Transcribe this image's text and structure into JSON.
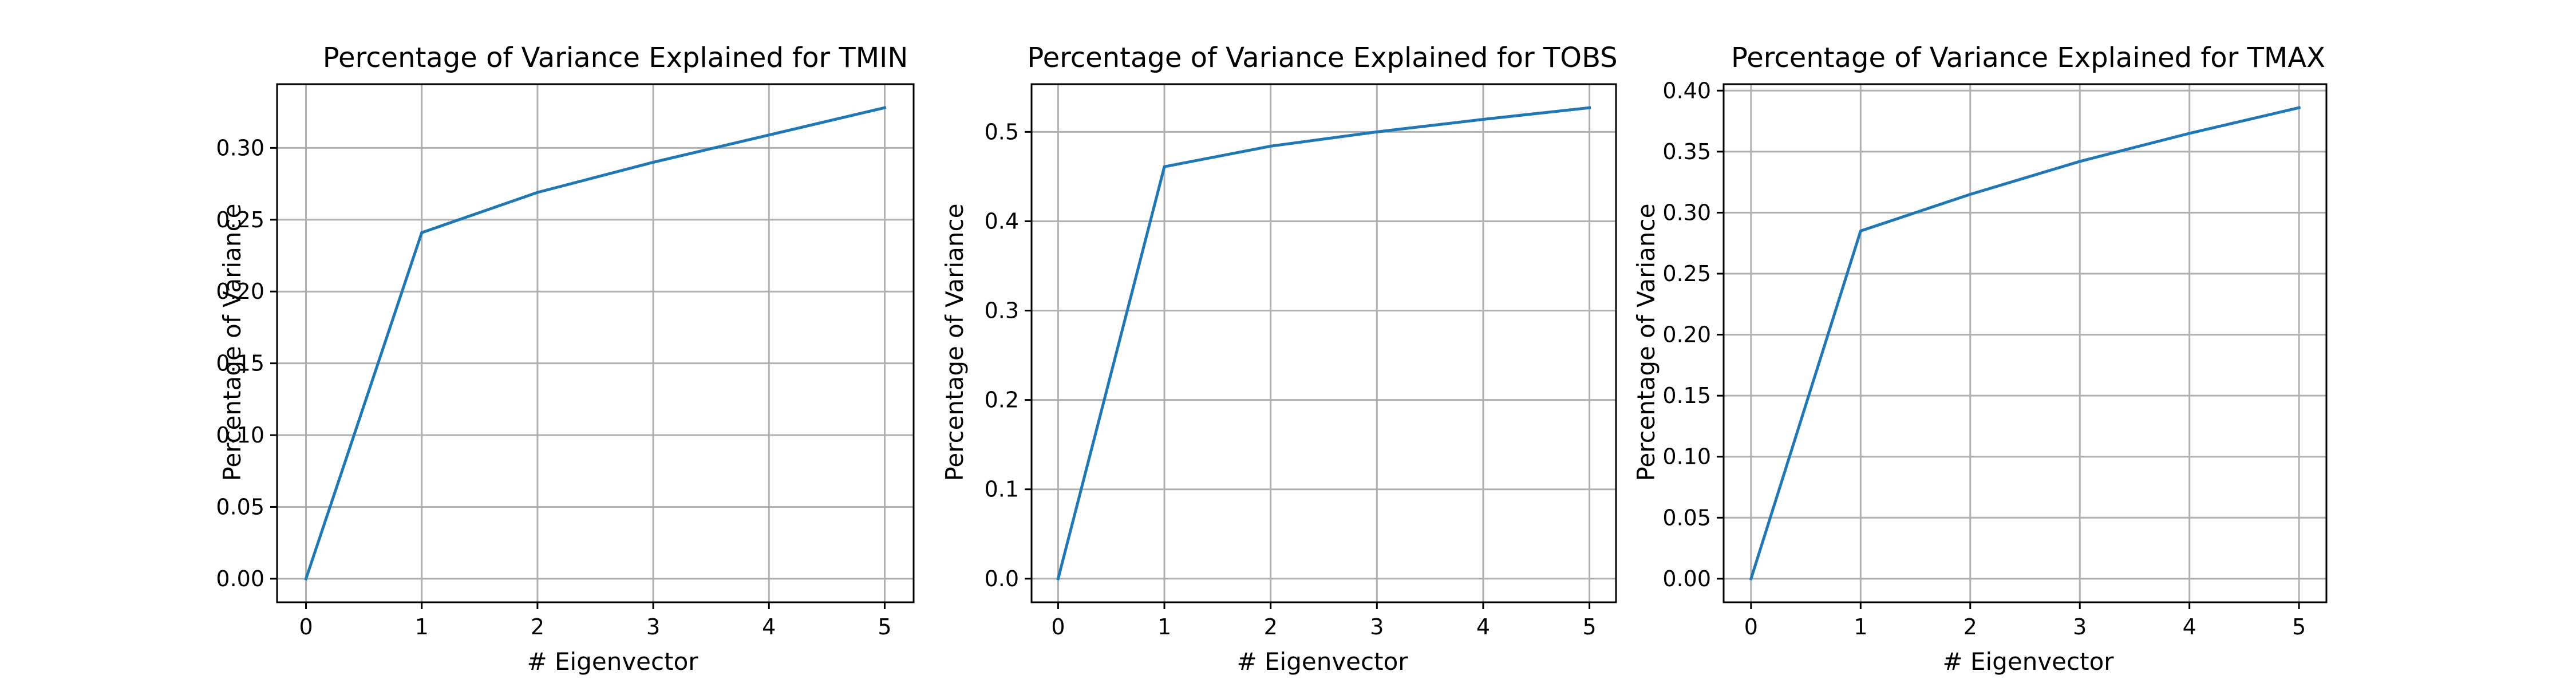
{
  "chart_data": [
    {
      "type": "line",
      "title": "Percentage of Variance Explained for TMIN",
      "xlabel": "# Eigenvector",
      "ylabel": "Percentage of Variance",
      "x": [
        0,
        1,
        2,
        3,
        4,
        5
      ],
      "series": [
        {
          "values": [
            0.0,
            0.241,
            0.269,
            0.29,
            0.309,
            0.328
          ]
        }
      ],
      "xlim": [
        -0.25,
        5.25
      ],
      "ylim": [
        -0.0164,
        0.3444
      ],
      "xticks": [
        0,
        1,
        2,
        3,
        4,
        5
      ],
      "xtick_labels": [
        "0",
        "1",
        "2",
        "3",
        "4",
        "5"
      ],
      "yticks": [
        0.0,
        0.05,
        0.1,
        0.15,
        0.2,
        0.25,
        0.3
      ],
      "ytick_labels": [
        "0.00",
        "0.05",
        "0.10",
        "0.15",
        "0.20",
        "0.25",
        "0.30"
      ],
      "grid": true,
      "color": "#1f77b4"
    },
    {
      "type": "line",
      "title": "Percentage of Variance Explained for TOBS",
      "xlabel": "# Eigenvector",
      "ylabel": "Percentage of Variance",
      "x": [
        0,
        1,
        2,
        3,
        4,
        5
      ],
      "series": [
        {
          "values": [
            0.0,
            0.461,
            0.484,
            0.5,
            0.514,
            0.527
          ]
        }
      ],
      "xlim": [
        -0.25,
        5.25
      ],
      "ylim": [
        -0.0264,
        0.5534
      ],
      "xticks": [
        0,
        1,
        2,
        3,
        4,
        5
      ],
      "xtick_labels": [
        "0",
        "1",
        "2",
        "3",
        "4",
        "5"
      ],
      "yticks": [
        0.0,
        0.1,
        0.2,
        0.3,
        0.4,
        0.5
      ],
      "ytick_labels": [
        "0.0",
        "0.1",
        "0.2",
        "0.3",
        "0.4",
        "0.5"
      ],
      "grid": true,
      "color": "#1f77b4"
    },
    {
      "type": "line",
      "title": "Percentage of Variance Explained for TMAX",
      "xlabel": "# Eigenvector",
      "ylabel": "Percentage of Variance",
      "x": [
        0,
        1,
        2,
        3,
        4,
        5
      ],
      "series": [
        {
          "values": [
            0.0,
            0.285,
            0.315,
            0.342,
            0.365,
            0.386
          ]
        }
      ],
      "xlim": [
        -0.25,
        5.25
      ],
      "ylim": [
        -0.0193,
        0.4053
      ],
      "xticks": [
        0,
        1,
        2,
        3,
        4,
        5
      ],
      "xtick_labels": [
        "0",
        "1",
        "2",
        "3",
        "4",
        "5"
      ],
      "yticks": [
        0.0,
        0.05,
        0.1,
        0.15,
        0.2,
        0.25,
        0.3,
        0.35,
        0.4
      ],
      "ytick_labels": [
        "0.00",
        "0.05",
        "0.10",
        "0.15",
        "0.20",
        "0.25",
        "0.30",
        "0.35",
        "0.40"
      ],
      "grid": true,
      "color": "#1f77b4"
    }
  ]
}
